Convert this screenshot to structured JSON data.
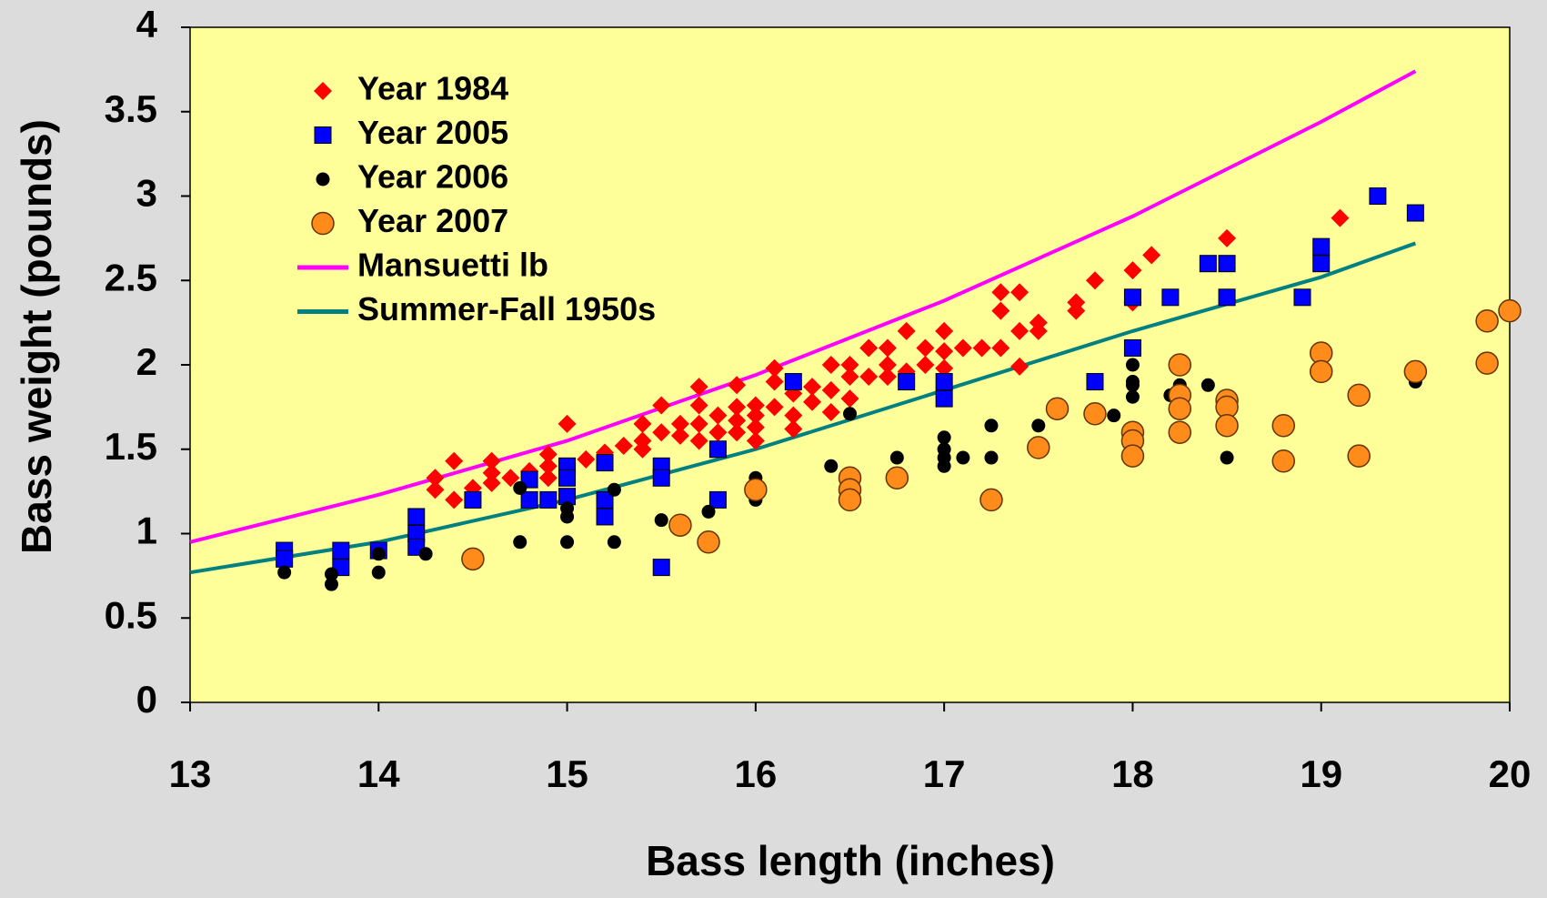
{
  "chart_data": {
    "type": "scatter",
    "xlabel": "Bass length (inches)",
    "ylabel": "Bass weight (pounds)",
    "xlim": [
      13,
      20
    ],
    "xticks": [
      13,
      14,
      15,
      16,
      17,
      18,
      19,
      20
    ],
    "ylim": [
      0,
      4
    ],
    "yticks": [
      0,
      0.5,
      1,
      1.5,
      2,
      2.5,
      3,
      3.5,
      4
    ],
    "background": "#ffff99",
    "legend": "upper-left",
    "series": [
      {
        "name": "Year 1984",
        "color": "#ff0000",
        "marker": "diamond",
        "x": [
          14.3,
          14.3,
          14.4,
          14.4,
          14.5,
          14.6,
          14.6,
          14.6,
          14.7,
          14.8,
          14.9,
          14.9,
          14.9,
          15,
          15.1,
          15.2,
          15.3,
          15.4,
          15.4,
          15.4,
          15.5,
          15.5,
          15.6,
          15.6,
          15.7,
          15.7,
          15.7,
          15.7,
          15.8,
          15.8,
          15.9,
          15.9,
          15.9,
          15.9,
          16,
          16,
          16,
          16,
          16.1,
          16.1,
          16.1,
          16.2,
          16.2,
          16.2,
          16.3,
          16.3,
          16.4,
          16.4,
          16.4,
          16.5,
          16.5,
          16.5,
          16.6,
          16.6,
          16.7,
          16.7,
          16.7,
          16.8,
          16.8,
          16.9,
          16.9,
          17,
          17,
          17,
          17.1,
          17.2,
          17.3,
          17.3,
          17.3,
          17.4,
          17.4,
          17.4,
          17.5,
          17.5,
          17.7,
          17.7,
          17.8,
          18,
          18,
          18.1,
          18.5,
          19.1
        ],
        "values": [
          1.33,
          1.26,
          1.43,
          1.2,
          1.27,
          1.43,
          1.36,
          1.3,
          1.33,
          1.37,
          1.47,
          1.4,
          1.33,
          1.65,
          1.44,
          1.48,
          1.52,
          1.65,
          1.55,
          1.5,
          1.76,
          1.6,
          1.65,
          1.58,
          1.87,
          1.76,
          1.65,
          1.55,
          1.7,
          1.6,
          1.88,
          1.75,
          1.67,
          1.6,
          1.76,
          1.7,
          1.63,
          1.55,
          1.98,
          1.9,
          1.75,
          1.83,
          1.7,
          1.62,
          1.87,
          1.78,
          2,
          1.85,
          1.72,
          2,
          1.93,
          1.8,
          2.1,
          1.93,
          2.1,
          2,
          1.93,
          2.2,
          1.96,
          2.1,
          2,
          2.2,
          2.08,
          1.98,
          2.1,
          2.1,
          2.43,
          2.32,
          2.1,
          2.43,
          2.2,
          1.99,
          2.25,
          2.2,
          2.37,
          2.32,
          2.5,
          2.56,
          2.37,
          2.65,
          2.75,
          2.87
        ]
      },
      {
        "name": "Year 2005",
        "color": "#0000ff",
        "marker": "square",
        "x": [
          13.5,
          13.5,
          13.8,
          13.8,
          14,
          14.2,
          14.2,
          14.2,
          14.5,
          14.8,
          14.8,
          14.9,
          15,
          15,
          15,
          15.2,
          15.2,
          15.2,
          15.5,
          15.5,
          15.5,
          15.8,
          15.8,
          16.2,
          16.8,
          17,
          17,
          17.8,
          18,
          18,
          18.2,
          18.4,
          18.5,
          18.5,
          18.9,
          19,
          19,
          19.3,
          19.5
        ],
        "values": [
          0.9,
          0.85,
          0.9,
          0.8,
          0.9,
          1.1,
          1,
          0.92,
          1.2,
          1.32,
          1.2,
          1.2,
          1.4,
          1.33,
          1.22,
          1.42,
          1.2,
          1.1,
          1.4,
          1.33,
          0.8,
          1.5,
          1.2,
          1.9,
          1.9,
          1.9,
          1.8,
          1.9,
          2.4,
          2.1,
          2.4,
          2.6,
          2.6,
          2.4,
          2.4,
          2.7,
          2.6,
          3,
          2.9
        ]
      },
      {
        "name": "Year 2006",
        "color": "#000000",
        "marker": "circle",
        "x": [
          13.5,
          13.75,
          13.75,
          14,
          14,
          14.25,
          14.75,
          14.75,
          15,
          15,
          15,
          15.25,
          15.25,
          15.5,
          15.75,
          16,
          16,
          16.4,
          16.5,
          16.75,
          17,
          17,
          17,
          17,
          17.1,
          17.25,
          17.25,
          17.5,
          17.9,
          18,
          18,
          18,
          18,
          18.2,
          18.25,
          18.25,
          18.4,
          18.5,
          19.5
        ],
        "values": [
          0.77,
          0.76,
          0.7,
          0.88,
          0.77,
          0.88,
          1.27,
          0.95,
          1.15,
          1.1,
          0.95,
          1.26,
          0.95,
          1.08,
          1.13,
          1.33,
          1.2,
          1.4,
          1.71,
          1.45,
          1.57,
          1.5,
          1.45,
          1.4,
          1.45,
          1.64,
          1.45,
          1.64,
          1.7,
          2,
          1.9,
          1.88,
          1.81,
          1.82,
          1.88,
          1.78,
          1.88,
          1.45,
          1.9
        ]
      },
      {
        "name": "Year 2007",
        "color": "#ff8c1a",
        "marker": "large-circle",
        "x": [
          14.5,
          15.6,
          15.75,
          16,
          16.5,
          16.5,
          16.5,
          16.75,
          17.25,
          17.5,
          17.6,
          17.8,
          18,
          18,
          18,
          18.25,
          18.25,
          18.25,
          18.25,
          18.5,
          18.5,
          18.5,
          18.8,
          18.8,
          19,
          19,
          19.2,
          19.2,
          19.5,
          19.88,
          19.88,
          20
        ],
        "values": [
          0.85,
          1.05,
          0.95,
          1.26,
          1.33,
          1.26,
          1.2,
          1.33,
          1.2,
          1.51,
          1.74,
          1.71,
          1.6,
          1.55,
          1.46,
          2,
          1.82,
          1.74,
          1.6,
          1.79,
          1.75,
          1.64,
          1.64,
          1.43,
          2.07,
          1.96,
          1.82,
          1.46,
          1.96,
          2.26,
          2.01,
          2.32
        ]
      },
      {
        "name": "Mansuetti lb",
        "color": "#ff00ff",
        "marker": "line",
        "x": [
          13,
          14,
          15,
          16,
          17,
          18,
          19,
          19.5
        ],
        "values": [
          0.95,
          1.23,
          1.55,
          1.94,
          2.38,
          2.88,
          3.44,
          3.74
        ]
      },
      {
        "name": "Summer-Fall 1950s",
        "color": "#008080",
        "marker": "line",
        "x": [
          13,
          14,
          15,
          16,
          17,
          18,
          19,
          19.5
        ],
        "values": [
          0.77,
          0.95,
          1.2,
          1.5,
          1.85,
          2.2,
          2.52,
          2.72
        ]
      }
    ]
  }
}
